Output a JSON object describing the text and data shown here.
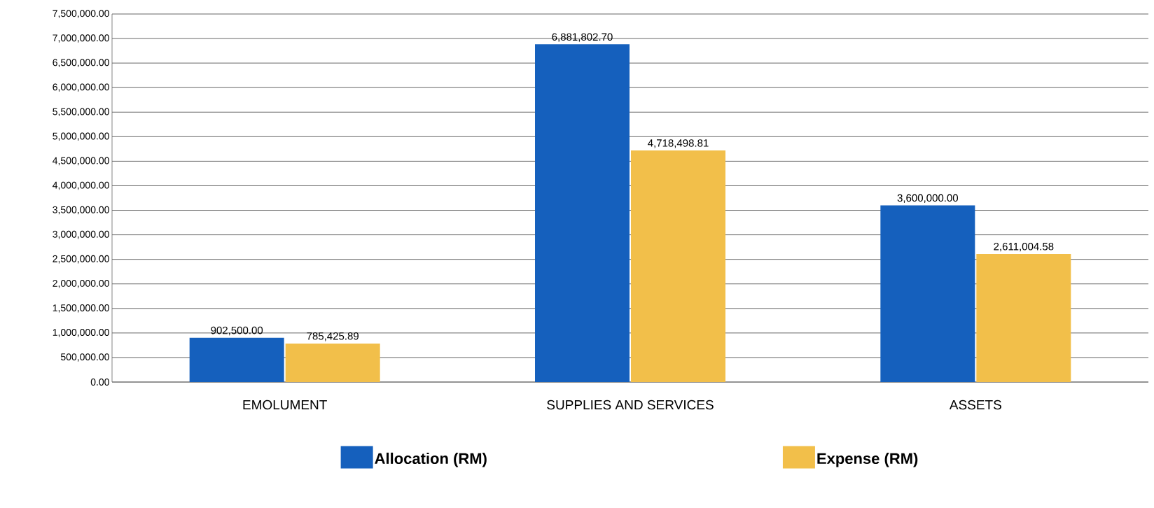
{
  "chart_data": {
    "type": "bar",
    "categories": [
      "EMOLUMENT",
      "SUPPLIES AND SERVICES",
      "ASSETS"
    ],
    "series": [
      {
        "name": "Allocation (RM)",
        "color": "#1560bd",
        "values": [
          902500.0,
          6881802.7,
          3600000.0
        ],
        "value_labels": [
          "902,500.00",
          "6,881,802.70",
          "3,600,000.00"
        ]
      },
      {
        "name": "Expense (RM)",
        "color": "#f2bf4a",
        "values": [
          785425.89,
          4718498.81,
          2611004.58
        ],
        "value_labels": [
          "785,425.89",
          "4,718,498.81",
          "2,611,004.58"
        ]
      }
    ],
    "ylim": [
      0,
      7500000
    ],
    "yticks": [
      {
        "value": 0,
        "label": "0.00"
      },
      {
        "value": 500000,
        "label": "500,000.00"
      },
      {
        "value": 1000000,
        "label": "1,000,000.00"
      },
      {
        "value": 1500000,
        "label": "1,500,000.00"
      },
      {
        "value": 2000000,
        "label": "2,000,000.00"
      },
      {
        "value": 2500000,
        "label": "2,500,000.00"
      },
      {
        "value": 3000000,
        "label": "3,000,000.00"
      },
      {
        "value": 3500000,
        "label": "3,500,000.00"
      },
      {
        "value": 4000000,
        "label": "4,000,000.00"
      },
      {
        "value": 4500000,
        "label": "4,500,000.00"
      },
      {
        "value": 5000000,
        "label": "5,000,000.00"
      },
      {
        "value": 5500000,
        "label": "5,500,000.00"
      },
      {
        "value": 6000000,
        "label": "6,000,000.00"
      },
      {
        "value": 6500000,
        "label": "6,500,000.00"
      },
      {
        "value": 7000000,
        "label": "7,000,000.00"
      },
      {
        "value": 7500000,
        "label": "7,500,000.00"
      }
    ],
    "grid": "y",
    "legend": "bottom"
  }
}
